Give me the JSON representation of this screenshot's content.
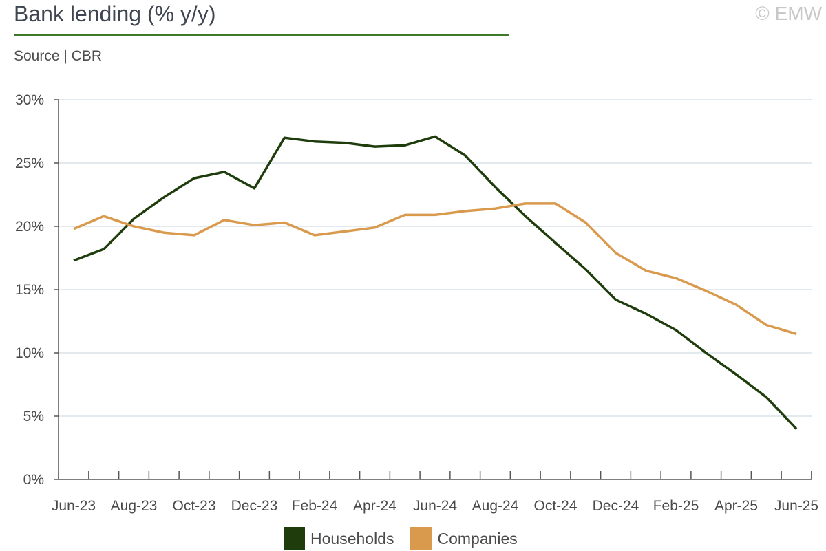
{
  "header": {
    "title": "Bank lending (% y/y)",
    "subtitle": "Source | CBR",
    "copyright": "© EMW"
  },
  "colors": {
    "households": "#1f3d0c",
    "companies": "#d99a4e",
    "title_rule": "#3c7a2a",
    "grid": "#d8e2ea",
    "axis": "#555555"
  },
  "chart_data": {
    "type": "line",
    "title": "Bank lending (% y/y)",
    "x": [
      "Jun-23",
      "Jul-23",
      "Aug-23",
      "Sep-23",
      "Oct-23",
      "Nov-23",
      "Dec-23",
      "Jan-24",
      "Feb-24",
      "Mar-24",
      "Apr-24",
      "May-24",
      "Jun-24",
      "Jul-24",
      "Aug-24",
      "Sep-24",
      "Oct-24",
      "Nov-24",
      "Dec-24",
      "Jan-25",
      "Feb-25",
      "Mar-25",
      "Apr-25",
      "May-25",
      "Jun-25"
    ],
    "x_tick_labels": [
      "Jun-23",
      "Aug-23",
      "Oct-23",
      "Dec-23",
      "Feb-24",
      "Apr-24",
      "Jun-24",
      "Aug-24",
      "Oct-24",
      "Dec-24",
      "Feb-25",
      "Apr-25",
      "Jun-25"
    ],
    "y_ticks": [
      "0%",
      "5%",
      "10%",
      "15%",
      "20%",
      "25%",
      "30%"
    ],
    "ylim": [
      0,
      30
    ],
    "grid": true,
    "legend_position": "bottom",
    "series": [
      {
        "name": "Households",
        "color": "#1f3d0c",
        "values": [
          17.3,
          18.2,
          20.6,
          22.3,
          23.8,
          24.3,
          23.0,
          27.0,
          26.7,
          26.6,
          26.3,
          26.4,
          27.1,
          25.6,
          23.1,
          20.8,
          18.7,
          16.6,
          14.2,
          13.1,
          11.8,
          10.0,
          8.3,
          6.5,
          4.0
        ]
      },
      {
        "name": "Companies",
        "color": "#d99a4e",
        "values": [
          19.8,
          20.8,
          20.0,
          19.5,
          19.3,
          20.5,
          20.1,
          20.3,
          19.3,
          19.6,
          19.9,
          20.9,
          20.9,
          21.2,
          21.4,
          21.8,
          21.8,
          20.3,
          17.9,
          16.5,
          15.9,
          14.9,
          13.8,
          12.2,
          11.5
        ]
      }
    ]
  }
}
